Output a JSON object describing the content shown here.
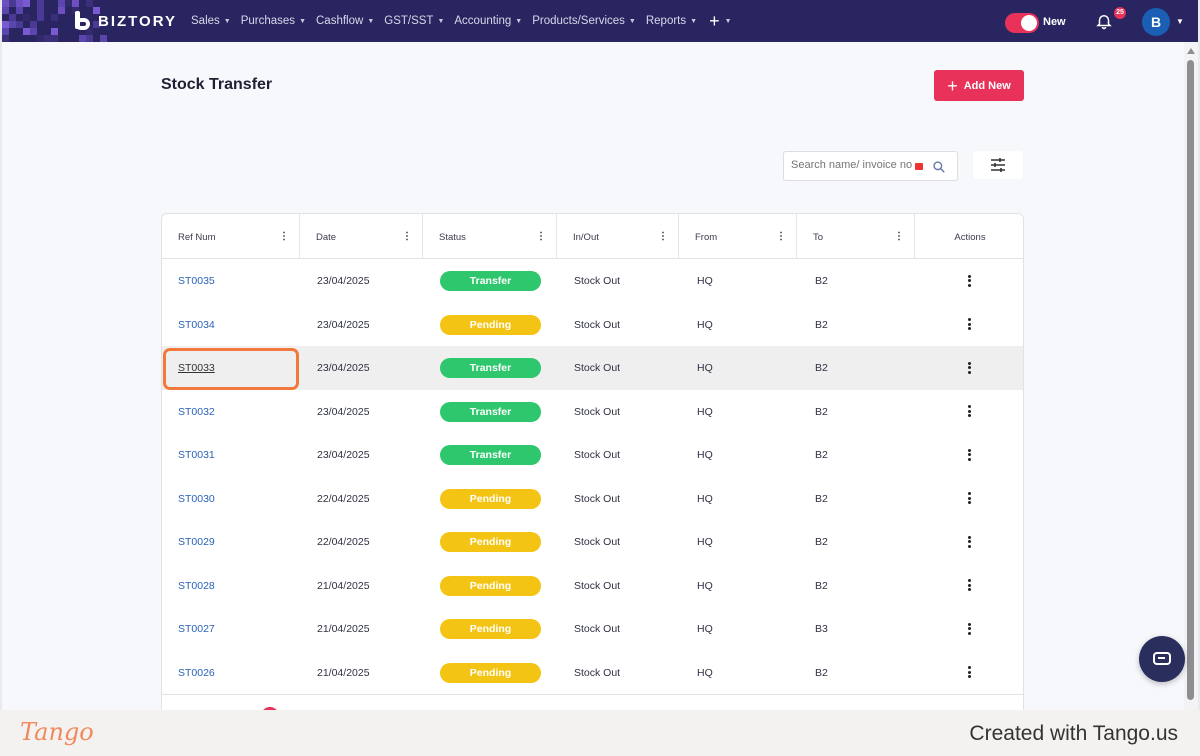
{
  "app": {
    "brand": "BIZTORY",
    "nav": [
      {
        "label": "Sales"
      },
      {
        "label": "Purchases"
      },
      {
        "label": "Cashflow"
      },
      {
        "label": "GST/SST"
      },
      {
        "label": "Accounting"
      },
      {
        "label": "Products/Services"
      },
      {
        "label": "Reports"
      }
    ],
    "toggle_label": "New",
    "notification_count": "25",
    "avatar_initial": "B"
  },
  "page": {
    "title": "Stock Transfer",
    "add_button": "Add New",
    "search_placeholder": "Search name/ invoice no"
  },
  "table": {
    "columns": [
      "Ref Num",
      "Date",
      "Status",
      "In/Out",
      "From",
      "To",
      "Actions"
    ],
    "rows": [
      {
        "ref": "ST0035",
        "date": "23/04/2025",
        "status": "Transfer",
        "inout": "Stock Out",
        "from": "HQ",
        "to": "B2"
      },
      {
        "ref": "ST0034",
        "date": "23/04/2025",
        "status": "Pending",
        "inout": "Stock Out",
        "from": "HQ",
        "to": "B2"
      },
      {
        "ref": "ST0033",
        "date": "23/04/2025",
        "status": "Transfer",
        "inout": "Stock Out",
        "from": "HQ",
        "to": "B2"
      },
      {
        "ref": "ST0032",
        "date": "23/04/2025",
        "status": "Transfer",
        "inout": "Stock Out",
        "from": "HQ",
        "to": "B2"
      },
      {
        "ref": "ST0031",
        "date": "23/04/2025",
        "status": "Transfer",
        "inout": "Stock Out",
        "from": "HQ",
        "to": "B2"
      },
      {
        "ref": "ST0030",
        "date": "22/04/2025",
        "status": "Pending",
        "inout": "Stock Out",
        "from": "HQ",
        "to": "B2"
      },
      {
        "ref": "ST0029",
        "date": "22/04/2025",
        "status": "Pending",
        "inout": "Stock Out",
        "from": "HQ",
        "to": "B2"
      },
      {
        "ref": "ST0028",
        "date": "21/04/2025",
        "status": "Pending",
        "inout": "Stock Out",
        "from": "HQ",
        "to": "B2"
      },
      {
        "ref": "ST0027",
        "date": "21/04/2025",
        "status": "Pending",
        "inout": "Stock Out",
        "from": "HQ",
        "to": "B3"
      },
      {
        "ref": "ST0026",
        "date": "21/04/2025",
        "status": "Pending",
        "inout": "Stock Out",
        "from": "HQ",
        "to": "B2"
      }
    ],
    "selected_ref": "ST0033"
  },
  "colors": {
    "nav_bg": "#282560",
    "accent": "#e8325a",
    "transfer": "#2ec76d",
    "pending": "#f3c414",
    "link": "#2a62b8",
    "highlight": "#f3783c"
  },
  "tango": {
    "logo": "Tango",
    "credit": "Created with Tango.us"
  }
}
